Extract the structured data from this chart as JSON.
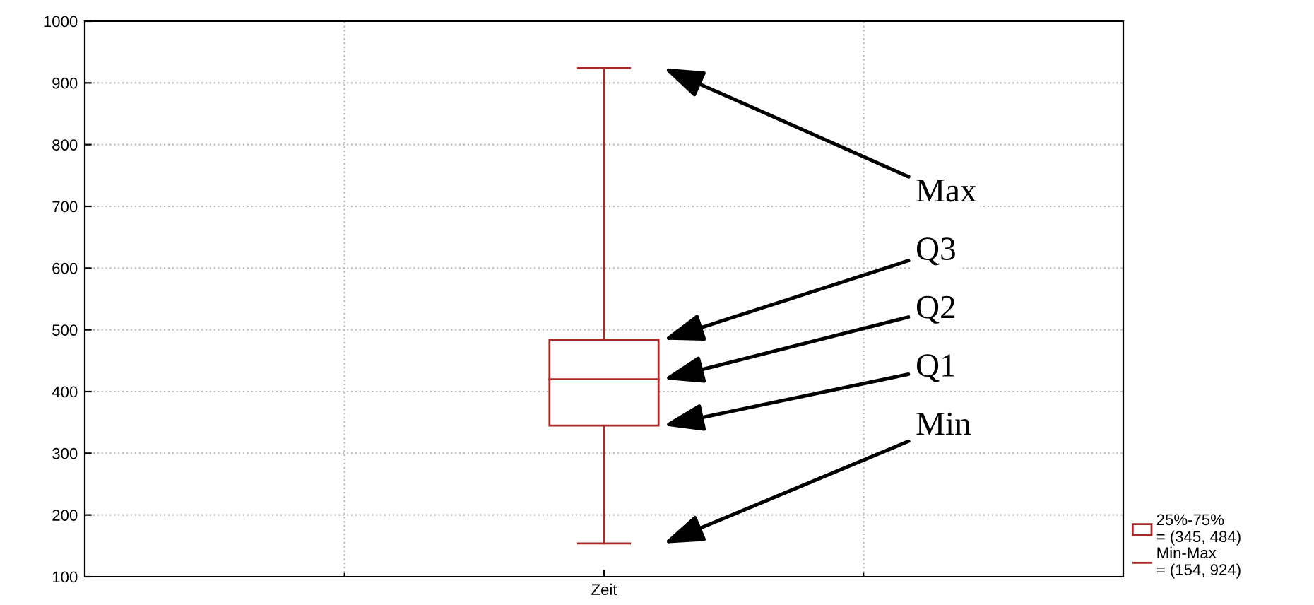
{
  "chart_data": {
    "type": "box",
    "categories": [
      "Zeit"
    ],
    "series": [
      {
        "name": "25%-75%\n= (345, 484)",
        "color": "#a52a2a",
        "boxes": [
          {
            "low": 154,
            "q1": 345,
            "median": 420,
            "q3": 484,
            "high": 924
          }
        ]
      }
    ],
    "ylim": [
      100,
      1000
    ],
    "yticks": [
      100,
      200,
      300,
      400,
      500,
      600,
      700,
      800,
      900,
      1000
    ],
    "grid": true,
    "legend": "bottom right",
    "annotations": [
      "Max",
      "Q3",
      "Q2",
      "Q1",
      "Min",
      "Min-Max\n= (154, 924)"
    ]
  }
}
